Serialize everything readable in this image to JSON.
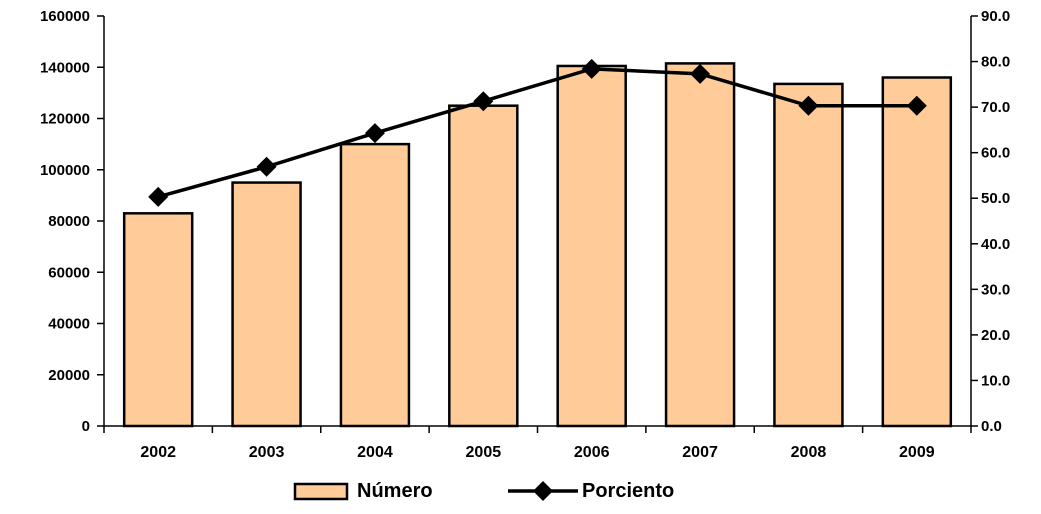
{
  "chart_data": {
    "type": "bar",
    "categories": [
      "2002",
      "2003",
      "2004",
      "2005",
      "2006",
      "2007",
      "2008",
      "2009"
    ],
    "series": [
      {
        "name": "Número",
        "type": "bar",
        "axis": "left",
        "values": [
          83000,
          95000,
          110000,
          125000,
          140500,
          141500,
          133500,
          136000
        ]
      },
      {
        "name": "Porciento",
        "type": "line",
        "axis": "right",
        "values": [
          50.3,
          56.9,
          64.3,
          71.3,
          78.4,
          77.3,
          70.3,
          70.3
        ]
      }
    ],
    "left_axis": {
      "ylim": [
        0,
        160000
      ],
      "ticks": [
        "0",
        "20000",
        "40000",
        "60000",
        "80000",
        "100000",
        "120000",
        "140000",
        "160000"
      ]
    },
    "right_axis": {
      "ylim": [
        0,
        90
      ],
      "ticks": [
        "0.0",
        "10.0",
        "20.0",
        "30.0",
        "40.0",
        "50.0",
        "60.0",
        "70.0",
        "80.0",
        "90.0"
      ]
    },
    "title": "",
    "xlabel": "",
    "ylabel": "",
    "grid": false,
    "legend": {
      "position": "bottom",
      "entries": [
        "Número",
        "Porciento"
      ]
    },
    "colors": {
      "bar_fill": "#FFCC99",
      "bar_stroke": "#000000",
      "line": "#000000",
      "marker": "#000000",
      "axis": "#000000"
    }
  }
}
